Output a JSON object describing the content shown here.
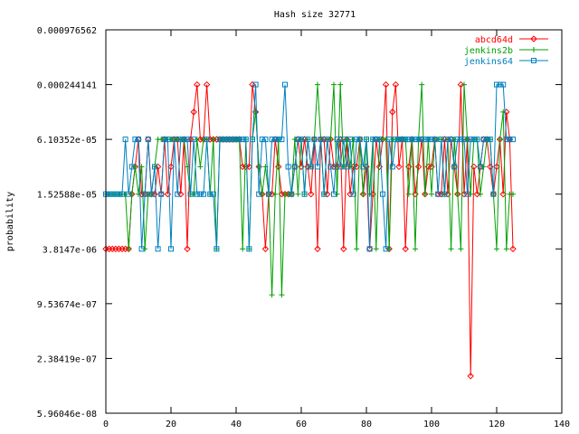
{
  "chart_data": {
    "type": "line",
    "title": "Hash size 32771",
    "xlabel": "",
    "ylabel": "probability",
    "xlim": [
      0,
      140
    ],
    "ylim": [
      5.96046e-08,
      0.000976562
    ],
    "yscale": "log",
    "grid": false,
    "legend_position": "top-right",
    "xticks": [
      "0",
      "20",
      "40",
      "60",
      "80",
      "100",
      "120",
      "140"
    ],
    "yticks": [
      "5.96046e-08",
      "2.38419e-07",
      "9.53674e-07",
      "3.8147e-06",
      "1.52588e-05",
      "6.10352e-05",
      "0.000244141",
      "0.000976562"
    ],
    "series": [
      {
        "name": "abcd64d",
        "color": "#ff0000",
        "marker": "diamond",
        "x": [
          0,
          1,
          2,
          3,
          4,
          5,
          6,
          7,
          8,
          9,
          10,
          11,
          12,
          13,
          14,
          15,
          16,
          17,
          18,
          19,
          20,
          21,
          22,
          23,
          24,
          25,
          26,
          27,
          28,
          29,
          30,
          31,
          32,
          33,
          34,
          35,
          36,
          37,
          38,
          39,
          40,
          41,
          42,
          43,
          44,
          45,
          46,
          47,
          48,
          49,
          50,
          51,
          52,
          53,
          54,
          55,
          56,
          57,
          58,
          59,
          60,
          61,
          62,
          63,
          64,
          65,
          66,
          67,
          68,
          69,
          70,
          71,
          72,
          73,
          74,
          75,
          76,
          77,
          78,
          79,
          80,
          81,
          82,
          83,
          84,
          85,
          86,
          87,
          88,
          89,
          90,
          91,
          92,
          93,
          94,
          95,
          96,
          97,
          98,
          99,
          100,
          101,
          102,
          103,
          104,
          105,
          106,
          107,
          108,
          109,
          110,
          111,
          112,
          113,
          114,
          115,
          116,
          117,
          118,
          119,
          120,
          121,
          122,
          123,
          124,
          125
        ],
        "y": [
          3.8147e-06,
          3.8147e-06,
          3.8147e-06,
          3.8147e-06,
          3.8147e-06,
          3.8147e-06,
          3.8147e-06,
          3.8147e-06,
          1.52588e-05,
          3.05176e-05,
          6.10352e-05,
          1.52588e-05,
          1.52588e-05,
          6.10352e-05,
          1.52588e-05,
          1.52588e-05,
          3.05176e-05,
          1.52588e-05,
          6.10352e-05,
          1.52588e-05,
          3.05176e-05,
          6.10352e-05,
          6.10352e-05,
          1.52588e-05,
          6.10352e-05,
          3.8147e-06,
          6.10352e-05,
          0.00012207,
          0.000244141,
          6.10352e-05,
          6.10352e-05,
          0.000244141,
          6.10352e-05,
          6.10352e-05,
          6.10352e-05,
          6.10352e-05,
          6.10352e-05,
          6.10352e-05,
          6.10352e-05,
          6.10352e-05,
          6.10352e-05,
          6.10352e-05,
          3.05176e-05,
          3.05176e-05,
          3.05176e-05,
          0.000244141,
          0.00012207,
          3.05176e-05,
          1.52588e-05,
          3.8147e-06,
          1.52588e-05,
          1.52588e-05,
          6.10352e-05,
          3.05176e-05,
          1.52588e-05,
          1.52588e-05,
          1.52588e-05,
          1.52588e-05,
          3.05176e-05,
          6.10352e-05,
          3.05176e-05,
          6.10352e-05,
          3.05176e-05,
          1.52588e-05,
          6.10352e-05,
          3.8147e-06,
          6.10352e-05,
          6.10352e-05,
          1.52588e-05,
          6.10352e-05,
          3.05176e-05,
          3.05176e-05,
          6.10352e-05,
          3.8147e-06,
          6.10352e-05,
          1.52588e-05,
          3.05176e-05,
          3.05176e-05,
          6.10352e-05,
          1.52588e-05,
          3.05176e-05,
          3.8147e-06,
          1.52588e-05,
          6.10352e-05,
          3.05176e-05,
          6.10352e-05,
          0.000244141,
          3.8147e-06,
          0.00012207,
          0.000244141,
          3.05176e-05,
          6.10352e-05,
          3.8147e-06,
          3.05176e-05,
          6.10352e-05,
          1.52588e-05,
          3.05176e-05,
          6.10352e-05,
          1.52588e-05,
          3.05176e-05,
          3.05176e-05,
          6.10352e-05,
          1.52588e-05,
          1.52588e-05,
          6.10352e-05,
          1.52588e-05,
          6.10352e-05,
          3.05176e-05,
          1.52588e-05,
          0.000244141,
          1.52588e-05,
          6.10352e-05,
          1.52588e-07,
          3.05176e-05,
          1.52588e-05,
          3.05176e-05,
          6.10352e-05,
          6.10352e-05,
          3.05176e-05,
          1.52588e-05,
          3.05176e-05,
          6.10352e-05,
          1.52588e-05,
          0.00012207,
          6.10352e-05,
          3.8147e-06
        ]
      },
      {
        "name": "jenkins2b",
        "color": "#00a000",
        "marker": "plus",
        "x": [
          0,
          1,
          2,
          3,
          4,
          5,
          6,
          7,
          8,
          9,
          10,
          11,
          12,
          13,
          14,
          15,
          16,
          17,
          18,
          19,
          20,
          21,
          22,
          23,
          24,
          25,
          26,
          27,
          28,
          29,
          30,
          31,
          32,
          33,
          34,
          35,
          36,
          37,
          38,
          39,
          40,
          41,
          42,
          43,
          44,
          45,
          46,
          47,
          48,
          49,
          50,
          51,
          52,
          53,
          54,
          55,
          56,
          57,
          58,
          59,
          60,
          61,
          62,
          63,
          64,
          65,
          66,
          67,
          68,
          69,
          70,
          71,
          72,
          73,
          74,
          75,
          76,
          77,
          78,
          79,
          80,
          81,
          82,
          83,
          84,
          85,
          86,
          87,
          88,
          89,
          90,
          91,
          92,
          93,
          94,
          95,
          96,
          97,
          98,
          99,
          100,
          101,
          102,
          103,
          104,
          105,
          106,
          107,
          108,
          109,
          110,
          111,
          112,
          113,
          114,
          115,
          116,
          117,
          118,
          119,
          120,
          121,
          122,
          123,
          124,
          125
        ],
        "y": [
          1.52588e-05,
          1.52588e-05,
          1.52588e-05,
          1.52588e-05,
          1.52588e-05,
          1.52588e-05,
          1.52588e-05,
          3.8147e-06,
          1.52588e-05,
          3.05176e-05,
          1.52588e-05,
          3.05176e-05,
          3.8147e-06,
          1.52588e-05,
          1.52588e-05,
          3.05176e-05,
          6.10352e-05,
          6.10352e-05,
          6.10352e-05,
          6.10352e-05,
          6.10352e-05,
          6.10352e-05,
          6.10352e-05,
          6.10352e-05,
          6.10352e-05,
          3.05176e-05,
          1.52588e-05,
          1.52588e-05,
          6.10352e-05,
          3.05176e-05,
          6.10352e-05,
          6.10352e-05,
          1.52588e-05,
          6.10352e-05,
          3.8147e-06,
          6.10352e-05,
          6.10352e-05,
          6.10352e-05,
          6.10352e-05,
          6.10352e-05,
          6.10352e-05,
          6.10352e-05,
          3.8147e-06,
          6.10352e-05,
          3.8147e-06,
          6.10352e-05,
          0.00012207,
          3.05176e-05,
          1.52588e-05,
          3.05176e-05,
          1.52588e-05,
          1.19209e-06,
          1.52588e-05,
          6.10352e-05,
          1.19209e-06,
          1.52588e-05,
          1.52588e-05,
          1.52588e-05,
          6.10352e-05,
          1.52588e-05,
          6.10352e-05,
          1.52588e-05,
          6.10352e-05,
          3.05176e-05,
          6.10352e-05,
          0.000244141,
          6.10352e-05,
          1.52588e-05,
          6.10352e-05,
          6.10352e-05,
          0.000244141,
          1.52588e-05,
          0.000244141,
          3.05176e-05,
          6.10352e-05,
          3.05176e-05,
          6.10352e-05,
          3.8147e-06,
          6.10352e-05,
          1.52588e-05,
          6.10352e-05,
          1.52588e-05,
          6.10352e-05,
          3.8147e-06,
          6.10352e-05,
          6.10352e-05,
          6.10352e-05,
          3.8147e-06,
          6.10352e-05,
          6.10352e-05,
          6.10352e-05,
          6.10352e-05,
          6.10352e-05,
          1.52588e-05,
          6.10352e-05,
          3.8147e-06,
          6.10352e-05,
          0.000244141,
          1.52588e-05,
          6.10352e-05,
          1.52588e-05,
          6.10352e-05,
          6.10352e-05,
          6.10352e-05,
          1.52588e-05,
          6.10352e-05,
          3.8147e-06,
          6.10352e-05,
          1.52588e-05,
          3.8147e-06,
          0.000244141,
          6.10352e-05,
          1.52588e-05,
          6.10352e-05,
          6.10352e-05,
          1.52588e-05,
          3.05176e-05,
          6.10352e-05,
          6.10352e-05,
          1.52588e-05,
          3.8147e-06,
          6.10352e-05,
          0.00012207,
          3.8147e-06,
          1.52588e-05,
          1.52588e-05
        ]
      },
      {
        "name": "jenkins64",
        "color": "#0080c0",
        "marker": "square",
        "x": [
          0,
          1,
          2,
          3,
          4,
          5,
          6,
          7,
          8,
          9,
          10,
          11,
          12,
          13,
          14,
          15,
          16,
          17,
          18,
          19,
          20,
          21,
          22,
          23,
          24,
          25,
          26,
          27,
          28,
          29,
          30,
          31,
          32,
          33,
          34,
          35,
          36,
          37,
          38,
          39,
          40,
          41,
          42,
          43,
          44,
          45,
          46,
          47,
          48,
          49,
          50,
          51,
          52,
          53,
          54,
          55,
          56,
          57,
          58,
          59,
          60,
          61,
          62,
          63,
          64,
          65,
          66,
          67,
          68,
          69,
          70,
          71,
          72,
          73,
          74,
          75,
          76,
          77,
          78,
          79,
          80,
          81,
          82,
          83,
          84,
          85,
          86,
          87,
          88,
          89,
          90,
          91,
          92,
          93,
          94,
          95,
          96,
          97,
          98,
          99,
          100,
          101,
          102,
          103,
          104,
          105,
          106,
          107,
          108,
          109,
          110,
          111,
          112,
          113,
          114,
          115,
          116,
          117,
          118,
          119,
          120,
          121,
          122,
          123,
          124,
          125
        ],
        "y": [
          1.52588e-05,
          1.52588e-05,
          1.52588e-05,
          1.52588e-05,
          1.52588e-05,
          1.52588e-05,
          6.10352e-05,
          1.52588e-05,
          3.05176e-05,
          6.10352e-05,
          6.10352e-05,
          3.8147e-06,
          1.52588e-05,
          6.10352e-05,
          1.52588e-05,
          3.05176e-05,
          3.8147e-06,
          1.52588e-05,
          6.10352e-05,
          6.10352e-05,
          3.8147e-06,
          6.10352e-05,
          1.52588e-05,
          6.10352e-05,
          6.10352e-05,
          6.10352e-05,
          1.52588e-05,
          6.10352e-05,
          1.52588e-05,
          1.52588e-05,
          1.52588e-05,
          6.10352e-05,
          1.52588e-05,
          1.52588e-05,
          3.8147e-06,
          6.10352e-05,
          6.10352e-05,
          6.10352e-05,
          6.10352e-05,
          6.10352e-05,
          6.10352e-05,
          6.10352e-05,
          6.10352e-05,
          6.10352e-05,
          3.8147e-06,
          6.10352e-05,
          0.000244141,
          1.52588e-05,
          6.10352e-05,
          6.10352e-05,
          1.52588e-05,
          6.10352e-05,
          6.10352e-05,
          6.10352e-05,
          6.10352e-05,
          0.000244141,
          3.05176e-05,
          1.52588e-05,
          3.05176e-05,
          6.10352e-05,
          6.10352e-05,
          1.52588e-05,
          6.10352e-05,
          3.05176e-05,
          6.10352e-05,
          3.05176e-05,
          6.10352e-05,
          1.52588e-05,
          6.10352e-05,
          3.05176e-05,
          1.52588e-05,
          6.10352e-05,
          3.05176e-05,
          6.10352e-05,
          3.05176e-05,
          6.10352e-05,
          1.52588e-05,
          6.10352e-05,
          6.10352e-05,
          3.05176e-05,
          6.10352e-05,
          3.8147e-06,
          6.10352e-05,
          6.10352e-05,
          6.10352e-05,
          1.52588e-05,
          3.8147e-06,
          6.10352e-05,
          3.05176e-05,
          6.10352e-05,
          6.10352e-05,
          6.10352e-05,
          6.10352e-05,
          6.10352e-05,
          6.10352e-05,
          6.10352e-05,
          6.10352e-05,
          6.10352e-05,
          6.10352e-05,
          6.10352e-05,
          6.10352e-05,
          6.10352e-05,
          1.52588e-05,
          6.10352e-05,
          1.52588e-05,
          6.10352e-05,
          6.10352e-05,
          3.05176e-05,
          6.10352e-05,
          6.10352e-05,
          6.10352e-05,
          1.52588e-05,
          6.10352e-05,
          6.10352e-05,
          6.10352e-05,
          3.05176e-05,
          6.10352e-05,
          6.10352e-05,
          6.10352e-05,
          1.52588e-05,
          0.000244141,
          0.000244141,
          0.000244141,
          6.10352e-05,
          6.10352e-05,
          6.10352e-05
        ]
      }
    ]
  }
}
